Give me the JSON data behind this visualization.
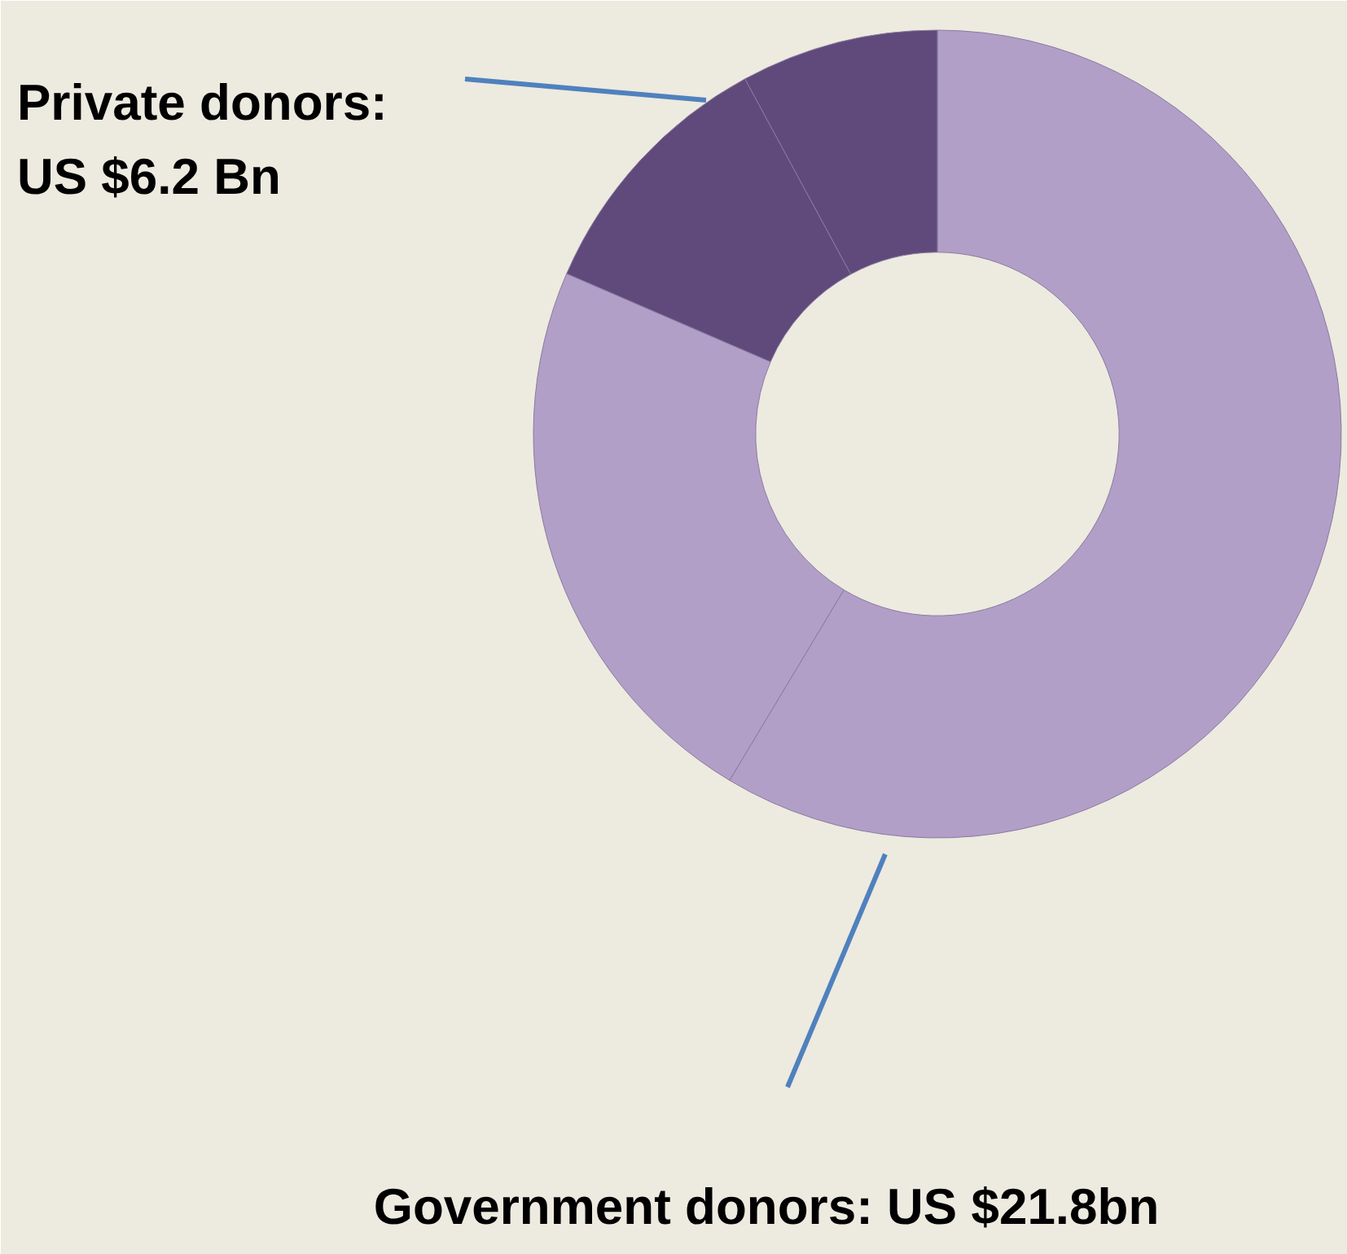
{
  "chart_data": {
    "type": "donut",
    "categories": [
      null,
      null,
      null,
      null
    ],
    "values": [
      58.6,
      22.9,
      10.6,
      7.9
    ],
    "colors": [
      "#b19fc8",
      "#b19fc8",
      "#604a7b",
      "#604a7b"
    ],
    "annotations": [
      "Private donors:\nUS $6.2 Bn",
      "Government donors: US $21.8bn"
    ]
  }
}
